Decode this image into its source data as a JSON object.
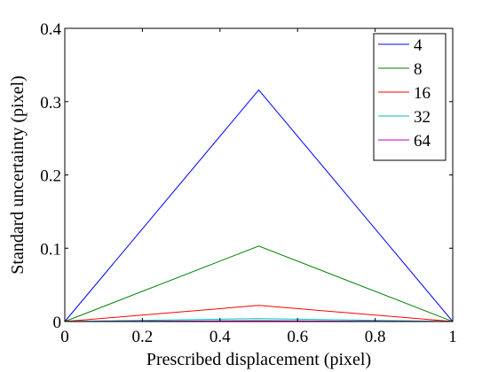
{
  "chart_data": {
    "type": "line",
    "xlabel": "Prescribed displacement (pixel)",
    "ylabel": "Standard uncertainty (pixel)",
    "xlim": [
      0,
      1
    ],
    "ylim": [
      0,
      0.4
    ],
    "xticks": [
      0,
      0.2,
      0.4,
      0.6,
      0.8,
      1
    ],
    "xtick_labels": [
      "0",
      "0.2",
      "0.4",
      "0.6",
      "0.8",
      "1"
    ],
    "yticks": [
      0,
      0.1,
      0.2,
      0.3,
      0.4
    ],
    "ytick_labels": [
      "0",
      "0.1",
      "0.2",
      "0.3",
      "0.4"
    ],
    "grid": false,
    "legend_position": "top-right",
    "x": [
      0,
      0.5,
      1
    ],
    "series": [
      {
        "name": "4",
        "color": "#0000ff",
        "values": [
          0,
          0.316,
          0
        ]
      },
      {
        "name": "8",
        "color": "#008000",
        "values": [
          0,
          0.103,
          0
        ]
      },
      {
        "name": "16",
        "color": "#ff0000",
        "values": [
          0,
          0.022,
          0
        ]
      },
      {
        "name": "32",
        "color": "#00bfbf",
        "values": [
          0,
          0.004,
          0
        ]
      },
      {
        "name": "64",
        "color": "#bf00bf",
        "values": [
          0,
          0.001,
          0
        ]
      }
    ]
  }
}
